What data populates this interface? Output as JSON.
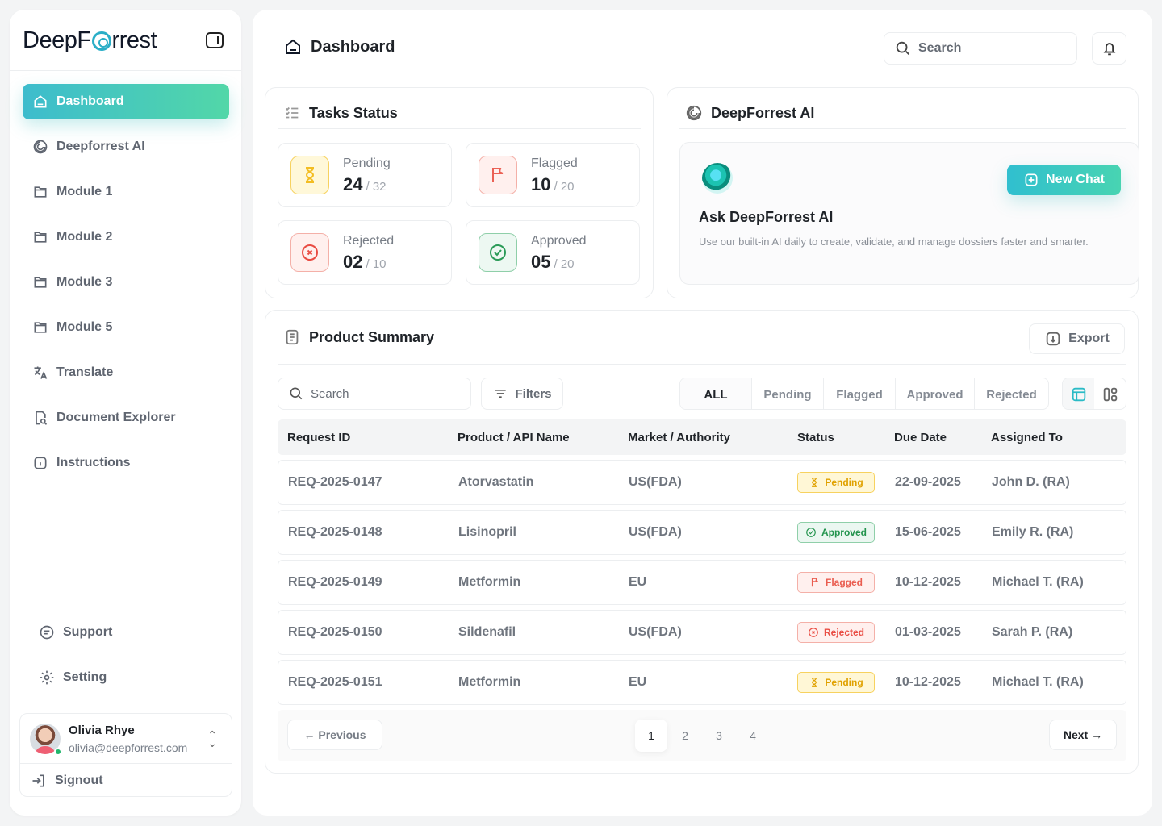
{
  "app": {
    "brand": "DeepFørrest",
    "brand_prefix": "DeepF",
    "brand_suffix": "rrest"
  },
  "sidebar": {
    "items": [
      {
        "label": "Dashboard",
        "icon": "home-icon"
      },
      {
        "label": "Deepforrest AI",
        "icon": "spiral-icon"
      },
      {
        "label": "Module 1",
        "icon": "folder-icon"
      },
      {
        "label": "Module 2",
        "icon": "folder-icon"
      },
      {
        "label": "Module 3",
        "icon": "folder-icon"
      },
      {
        "label": "Module 5",
        "icon": "folder-icon"
      },
      {
        "label": "Translate",
        "icon": "translate-icon"
      },
      {
        "label": "Document Explorer",
        "icon": "document-search-icon"
      },
      {
        "label": "Instructions",
        "icon": "info-icon"
      }
    ],
    "bottom": [
      {
        "label": "Support",
        "icon": "chat-icon"
      },
      {
        "label": "Setting",
        "icon": "gear-icon"
      }
    ],
    "user": {
      "name": "Olivia Rhye",
      "email": "olivia@deepforrest.com"
    },
    "signout": "Signout"
  },
  "header": {
    "title": "Dashboard",
    "search_placeholder": "Search"
  },
  "tasks": {
    "title": "Tasks Status",
    "items": [
      {
        "label": "Pending",
        "value": "24",
        "total": "/ 32",
        "color": "#f3bd22"
      },
      {
        "label": "Flagged",
        "value": "10",
        "total": "/ 20",
        "color": "#eb6155"
      },
      {
        "label": "Rejected",
        "value": "02",
        "total": "/ 10",
        "color": "#e94c43"
      },
      {
        "label": "Approved",
        "value": "05",
        "total": "/ 20",
        "color": "#2b9b58"
      }
    ]
  },
  "ai": {
    "title": "DeepForrest AI",
    "card_title": "Ask DeepForrest AI",
    "description": "Use our built-in AI daily to create, validate, and manage dossiers faster and smarter.",
    "button": "New Chat"
  },
  "summary": {
    "title": "Product Summary",
    "export": "Export",
    "search_placeholder": "Search",
    "filters": "Filters",
    "tabs": [
      "ALL",
      "Pending",
      "Flagged",
      "Approved",
      "Rejected"
    ],
    "columns": [
      "Request ID",
      "Product / API Name",
      "Market / Authority",
      "Status",
      "Due Date",
      "Assigned To"
    ],
    "rows": [
      {
        "id": "REQ-2025-0147",
        "product": "Atorvastatin",
        "market": "US(FDA)",
        "status": "Pending",
        "due": "22-09-2025",
        "assigned": "John D. (RA)"
      },
      {
        "id": "REQ-2025-0148",
        "product": "Lisinopril",
        "market": "US(FDA)",
        "status": "Approved",
        "due": "15-06-2025",
        "assigned": "Emily R. (RA)"
      },
      {
        "id": "REQ-2025-0149",
        "product": "Metformin",
        "market": "EU",
        "status": "Flagged",
        "due": "10-12-2025",
        "assigned": "Michael T. (RA)"
      },
      {
        "id": "REQ-2025-0150",
        "product": "Sildenafil",
        "market": "US(FDA)",
        "status": "Rejected",
        "due": "01-03-2025",
        "assigned": "Sarah P. (RA)"
      },
      {
        "id": "REQ-2025-0151",
        "product": "Metformin",
        "market": "EU",
        "status": "Pending",
        "due": "10-12-2025",
        "assigned": "Michael T. (RA)"
      }
    ],
    "pagination": {
      "previous": "Previous",
      "next": "Next",
      "pages": [
        "1",
        "2",
        "3",
        "4"
      ],
      "current": "1"
    }
  },
  "colors": {
    "accent": "#3dbccd",
    "accent2": "#52d7a8"
  }
}
